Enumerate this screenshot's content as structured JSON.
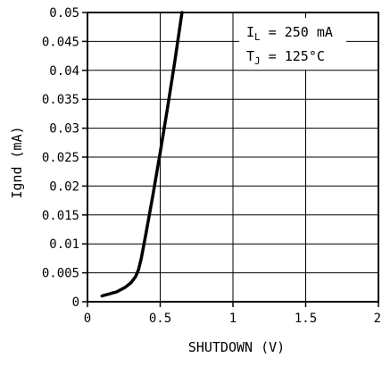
{
  "chart_data": {
    "type": "line",
    "title": "",
    "xlabel": "SHUTDOWN (V)",
    "ylabel": "Ignd (mA)",
    "xlim": [
      0,
      2
    ],
    "ylim": [
      0,
      0.05
    ],
    "grid": true,
    "x_ticks": [
      "0",
      "0.5",
      "1",
      "1.5",
      "2"
    ],
    "y_ticks": [
      "0",
      "0.005",
      "0.01",
      "0.015",
      "0.02",
      "0.025",
      "0.03",
      "0.035",
      "0.04",
      "0.045",
      "0.05"
    ],
    "series": [
      {
        "x": [
          0.1,
          0.2,
          0.26,
          0.3,
          0.33,
          0.35,
          0.37,
          0.4,
          0.45,
          0.5,
          0.55,
          0.6,
          0.65
        ],
        "y": [
          0.001,
          0.0017,
          0.0025,
          0.0033,
          0.0043,
          0.0055,
          0.0075,
          0.0115,
          0.0185,
          0.0258,
          0.0335,
          0.0415,
          0.05
        ]
      }
    ],
    "annotations": [
      {
        "main": "I",
        "sub": "L",
        "rest": " = 250 mA"
      },
      {
        "main": "T",
        "sub": "J",
        "rest": " = 125°C"
      }
    ]
  }
}
